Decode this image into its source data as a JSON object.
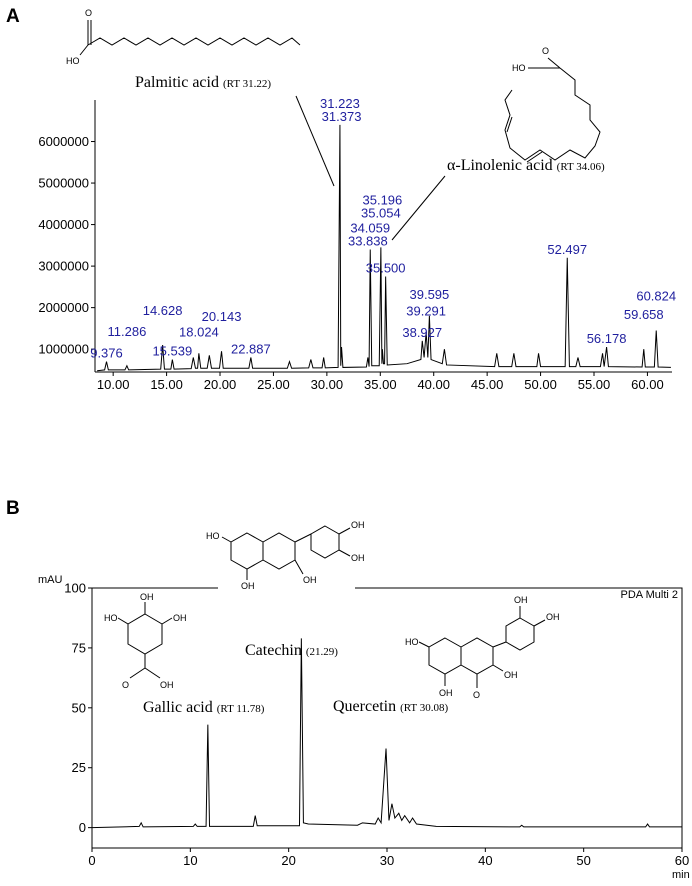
{
  "chart_data": [
    {
      "type": "line",
      "panel": "A",
      "annotations": [
        {
          "name": "Palmitic acid",
          "note": "(RT 31.22)"
        },
        {
          "name": "α-Linolenic acid",
          "note": "(RT 34.06)"
        }
      ],
      "structures": [
        [
          "O",
          "HO"
        ],
        [
          "O",
          "HO"
        ]
      ],
      "x": [
        8.5,
        9.2,
        9.376,
        9.55,
        11.1,
        11.286,
        11.45,
        14.45,
        14.628,
        14.8,
        15.4,
        15.539,
        15.7,
        17.3,
        17.5,
        17.7,
        17.9,
        18.02,
        18.2,
        18.8,
        19.0,
        19.2,
        19.95,
        20.143,
        20.3,
        22.7,
        22.887,
        23.05,
        26.3,
        26.5,
        26.7,
        28.3,
        28.5,
        28.7,
        29.55,
        29.7,
        29.85,
        31.05,
        31.223,
        31.3,
        31.373,
        31.5,
        33.7,
        33.838,
        33.95,
        34.059,
        34.2,
        34.9,
        35.054,
        35.15,
        35.196,
        35.3,
        35.4,
        35.5,
        35.65,
        37.5,
        38.8,
        38.927,
        39.1,
        39.291,
        39.45,
        39.595,
        39.75,
        40.8,
        41.0,
        41.2,
        45.7,
        45.9,
        46.1,
        47.3,
        47.5,
        47.7,
        49.65,
        49.81,
        50.0,
        52.3,
        52.497,
        52.7,
        53.3,
        53.5,
        53.7,
        55.6,
        55.8,
        55.95,
        56.178,
        56.35,
        59.5,
        59.658,
        59.8,
        60.65,
        60.824,
        61.0,
        62.2
      ],
      "series": [
        {
          "color": "#000000",
          "values": [
            480000,
            500000,
            700000,
            500000,
            500000,
            600000,
            500000,
            520000,
            1100000,
            520000,
            520000,
            750000,
            520000,
            530000,
            800000,
            540000,
            540000,
            900000,
            540000,
            540000,
            850000,
            540000,
            540000,
            950000,
            540000,
            540000,
            800000,
            540000,
            540000,
            700000,
            540000,
            550000,
            750000,
            550000,
            550000,
            800000,
            550000,
            560000,
            6400000,
            600000,
            1050000,
            560000,
            570000,
            800000,
            580000,
            3400000,
            600000,
            600000,
            3450000,
            650000,
            1000000,
            650000,
            650000,
            2750000,
            620000,
            650000,
            750000,
            1200000,
            800000,
            1400000,
            800000,
            1800000,
            750000,
            650000,
            1000000,
            620000,
            580000,
            900000,
            580000,
            580000,
            900000,
            580000,
            580000,
            900000,
            580000,
            580000,
            3200000,
            580000,
            580000,
            800000,
            580000,
            580000,
            900000,
            580000,
            1050000,
            580000,
            570000,
            1000000,
            570000,
            570000,
            1450000,
            570000,
            560000
          ]
        }
      ],
      "peaks": {
        "color": "#1f1f9e",
        "rt": [
          9.376,
          11.286,
          14.628,
          15.539,
          18.024,
          20.143,
          22.887,
          31.373,
          31.223,
          33.838,
          34.059,
          35.054,
          35.196,
          35.5,
          38.927,
          39.291,
          39.595,
          52.497,
          56.178,
          59.658,
          60.824
        ],
        "labels": [
          "9.376",
          "11.286",
          "14.628",
          "15.539",
          "18.024",
          "20.143",
          "22.887",
          "31.373",
          "31.223",
          "33.838",
          "34.059",
          "35.054",
          "35.196",
          "35.500",
          "38.927",
          "39.291",
          "39.595",
          "52.497",
          "56.178",
          "59.658",
          "60.824"
        ]
      },
      "xlim": [
        8.3,
        62.3
      ],
      "ylim": [
        450000,
        7000000
      ],
      "xticks": [
        {
          "value": 10,
          "label": "10.00"
        },
        {
          "value": 15,
          "label": "15.00"
        },
        {
          "value": 20,
          "label": "20.00"
        },
        {
          "value": 25,
          "label": "25.00"
        },
        {
          "value": 30,
          "label": "30.00"
        },
        {
          "value": 35,
          "label": "35.00"
        },
        {
          "value": 40,
          "label": "40.00"
        },
        {
          "value": 45,
          "label": "45.00"
        },
        {
          "value": 50,
          "label": "50.00"
        },
        {
          "value": 55,
          "label": "55.00"
        },
        {
          "value": 60,
          "label": "60.00"
        }
      ],
      "yticks": [
        1000000,
        2000000,
        3000000,
        4000000,
        5000000,
        6000000
      ],
      "frame": false
    },
    {
      "type": "line",
      "panel": "B",
      "annotations": [
        {
          "name": "Gallic acid",
          "note": "(RT 11.78)"
        },
        {
          "name": "Catechin",
          "note": "(21.29)"
        },
        {
          "name": "Quercetin",
          "note": "(RT 30.08)"
        }
      ],
      "structures": [
        [
          "OH",
          "HO",
          "OH",
          "O",
          "OH"
        ],
        [
          "HO",
          "OH",
          "OH",
          "OH",
          "OH"
        ],
        [
          "HO",
          "OH",
          "O",
          "OH",
          "OH",
          "OH"
        ]
      ],
      "ylabel": "mAU",
      "xlabel": "min",
      "detector": "PDA Multi 2",
      "x": [
        0,
        4.8,
        5.0,
        5.2,
        10.3,
        10.5,
        10.7,
        11.6,
        11.78,
        11.95,
        16.4,
        16.6,
        16.8,
        21.1,
        21.29,
        21.5,
        22,
        27,
        27.5,
        28.8,
        29.1,
        29.4,
        29.9,
        30.2,
        30.5,
        30.8,
        31.2,
        31.5,
        31.8,
        32.3,
        32.6,
        33,
        35,
        43.5,
        43.7,
        43.9,
        56.3,
        56.5,
        56.7,
        60
      ],
      "series": [
        {
          "color": "#000000",
          "values": [
            0,
            0.5,
            2,
            0.3,
            0.5,
            1.5,
            0.5,
            0.5,
            43,
            0.5,
            0.5,
            5,
            0.8,
            0.8,
            79,
            2,
            1.5,
            1,
            2,
            1.5,
            4,
            2,
            33,
            3,
            10,
            4,
            6,
            3,
            5,
            2,
            4,
            1.5,
            0.5,
            0.3,
            1,
            0.3,
            0.3,
            1.5,
            0.3,
            0.3
          ]
        }
      ],
      "xlim": [
        0,
        60
      ],
      "ylim": [
        -8.5,
        100
      ],
      "xticks": [
        0,
        10,
        20,
        30,
        40,
        50,
        60
      ],
      "yticks": [
        0,
        25,
        50,
        75,
        100
      ],
      "frame": true
    }
  ]
}
